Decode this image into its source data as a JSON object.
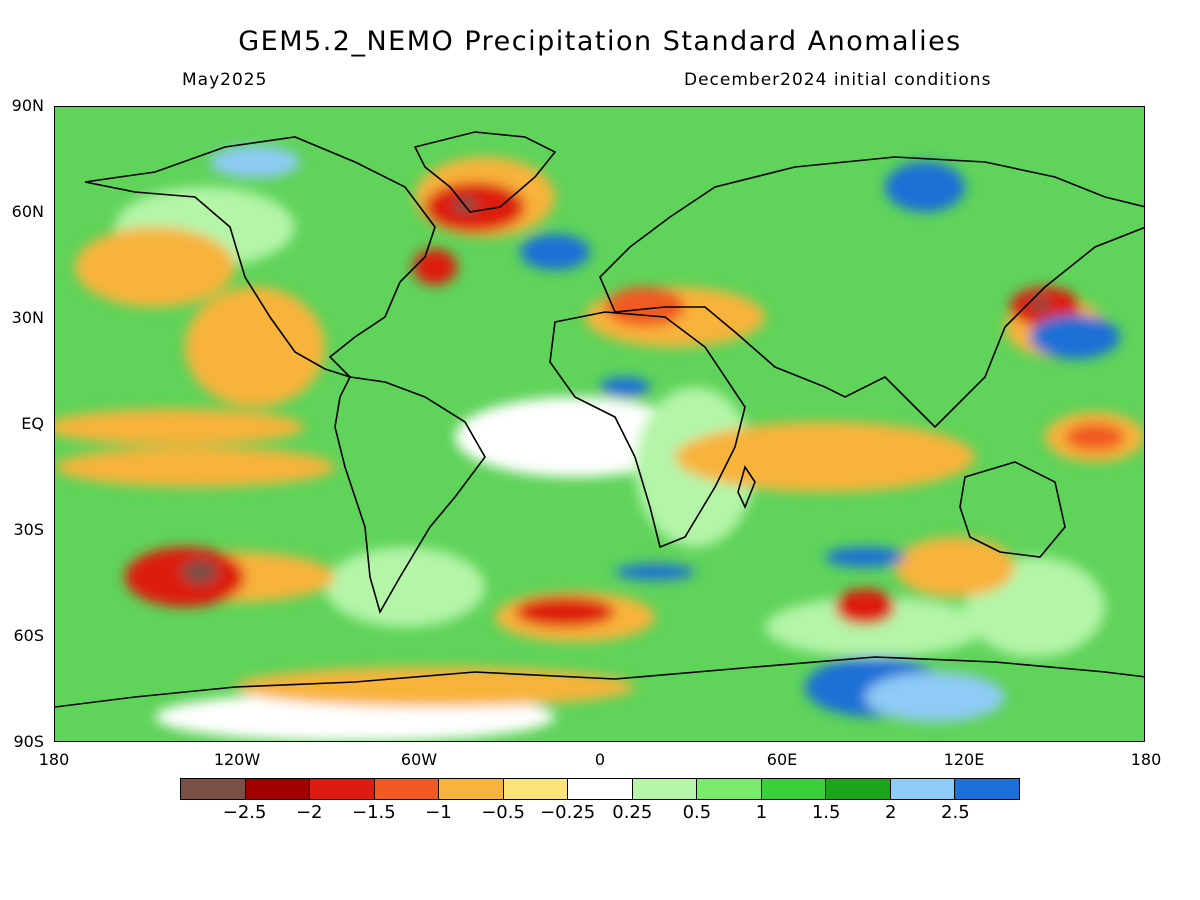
{
  "title": "GEM5.2_NEMO Precipitation Standard Anomalies",
  "subtitle_left": "May2025",
  "subtitle_right": "December2024 initial conditions",
  "lat_labels": [
    "90N",
    "60N",
    "30N",
    "EQ",
    "30S",
    "60S",
    "90S"
  ],
  "lon_labels": [
    "180",
    "120W",
    "60W",
    "0",
    "60E",
    "120E",
    "180"
  ],
  "legend": {
    "colors": [
      "#7a5046",
      "#a00000",
      "#dd1b10",
      "#f15a22",
      "#f8b33a",
      "#fbe27a",
      "#ffffff",
      "#b4f5a8",
      "#79ea6c",
      "#3ccf3c",
      "#1aa51a",
      "#8ecbf6",
      "#1c6fd6"
    ],
    "labels": [
      "-2.5",
      "-2",
      "-1.5",
      "-1",
      "-0.5",
      "-0.25",
      "0.25",
      "0.5",
      "1",
      "1.5",
      "2",
      "2.5"
    ]
  }
}
